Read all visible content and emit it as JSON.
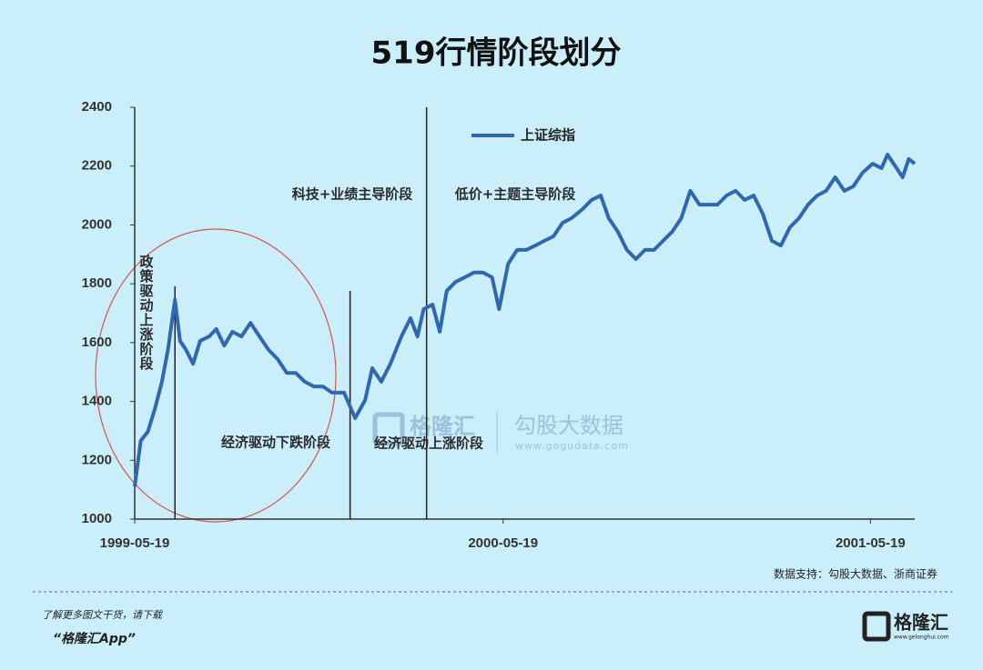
{
  "chart_data": {
    "type": "line",
    "title": "519行情阶段划分",
    "x": [
      "1999-05-19",
      "1999-05-25",
      "1999-06-01",
      "1999-06-08",
      "1999-06-15",
      "1999-06-21",
      "1999-06-28",
      "1999-07-03",
      "1999-07-09",
      "1999-07-16",
      "1999-07-23",
      "1999-08-01",
      "1999-08-08",
      "1999-08-16",
      "1999-08-24",
      "1999-09-02",
      "1999-09-11",
      "1999-09-20",
      "1999-09-29",
      "1999-10-08",
      "1999-10-17",
      "1999-10-26",
      "1999-11-04",
      "1999-11-13",
      "1999-11-22",
      "1999-12-01",
      "1999-12-13",
      "1999-12-24",
      "2000-01-03",
      "2000-01-10",
      "2000-01-19",
      "2000-01-28",
      "2000-02-08",
      "2000-02-17",
      "2000-02-24",
      "2000-03-01",
      "2000-03-10",
      "2000-03-17",
      "2000-03-24",
      "2000-04-02",
      "2000-04-11",
      "2000-04-20",
      "2000-04-29",
      "2000-05-08",
      "2000-05-15",
      "2000-05-24",
      "2000-06-02",
      "2000-06-11",
      "2000-06-20",
      "2000-06-29",
      "2000-07-08",
      "2000-07-17",
      "2000-07-26",
      "2000-08-06",
      "2000-08-15",
      "2000-08-24",
      "2000-09-01",
      "2000-09-10",
      "2000-09-19",
      "2000-09-28",
      "2000-10-07",
      "2000-10-16",
      "2000-10-25",
      "2000-11-03",
      "2000-11-12",
      "2000-11-21",
      "2000-11-30",
      "2000-12-09",
      "2000-12-18",
      "2000-12-27",
      "2001-01-05",
      "2001-01-14",
      "2001-01-23",
      "2001-02-01",
      "2001-02-10",
      "2001-02-19",
      "2001-02-28",
      "2001-03-09",
      "2001-03-18",
      "2001-03-27",
      "2001-04-05",
      "2001-04-14",
      "2001-04-23",
      "2001-05-02",
      "2001-05-11",
      "2001-05-21",
      "2001-05-30",
      "2001-06-05",
      "2001-06-14",
      "2001-06-20",
      "2001-06-26",
      "2001-07-02"
    ],
    "series": [
      {
        "name": "上证综指",
        "color": "#2f68b0",
        "values": [
          1111,
          1266,
          1297,
          1374,
          1467,
          1575,
          1745,
          1606,
          1575,
          1528,
          1606,
          1621,
          1646,
          1590,
          1637,
          1621,
          1667,
          1621,
          1575,
          1544,
          1497,
          1497,
          1467,
          1451,
          1451,
          1430,
          1430,
          1343,
          1405,
          1513,
          1467,
          1528,
          1621,
          1683,
          1621,
          1714,
          1729,
          1637,
          1776,
          1807,
          1822,
          1838,
          1838,
          1822,
          1714,
          1868,
          1915,
          1915,
          1930,
          1946,
          1961,
          2007,
          2023,
          2054,
          2085,
          2100,
          2023,
          1977,
          1915,
          1884,
          1915,
          1915,
          1946,
          1977,
          2023,
          2116,
          2069,
          2069,
          2069,
          2100,
          2116,
          2085,
          2100,
          2038,
          1946,
          1930,
          1992,
          2023,
          2069,
          2100,
          2116,
          2162,
          2116,
          2131,
          2177,
          2208,
          2193,
          2239,
          2193,
          2162,
          2224,
          2208
        ]
      }
    ],
    "xlim": [
      "1999-05-19",
      "2001-07-02"
    ],
    "xticks": [
      "1999-05-19",
      "2000-05-19",
      "2001-05-19"
    ],
    "ylim": [
      1000,
      2400
    ],
    "yticks": [
      1000,
      1200,
      1400,
      1600,
      1800,
      2000,
      2200,
      2400
    ],
    "grid": false,
    "phase_lines": [
      {
        "x": "1999-06-28",
        "y_top": 1791
      },
      {
        "x": "1999-12-19",
        "y_top": 1776
      },
      {
        "x": "2000-03-04",
        "y_top": 2400
      }
    ],
    "annotations": [
      "政策驱动上涨阶段",
      "经济驱动下跌阶段",
      "经济驱动上涨阶段",
      "科技+业绩主导阶段",
      "低价+主题主导阶段"
    ],
    "source": "数据支持：勾股大数据、浙商证券"
  },
  "watermark": {
    "brand": "格隆汇",
    "name": "勾股大数据",
    "url": "www.gogudata.com"
  },
  "footer": {
    "prompt": "了解更多图文干货，请下载",
    "app": "“格隆汇App”",
    "logo": "格隆汇",
    "logo_url": "www.gelonghui.com"
  }
}
